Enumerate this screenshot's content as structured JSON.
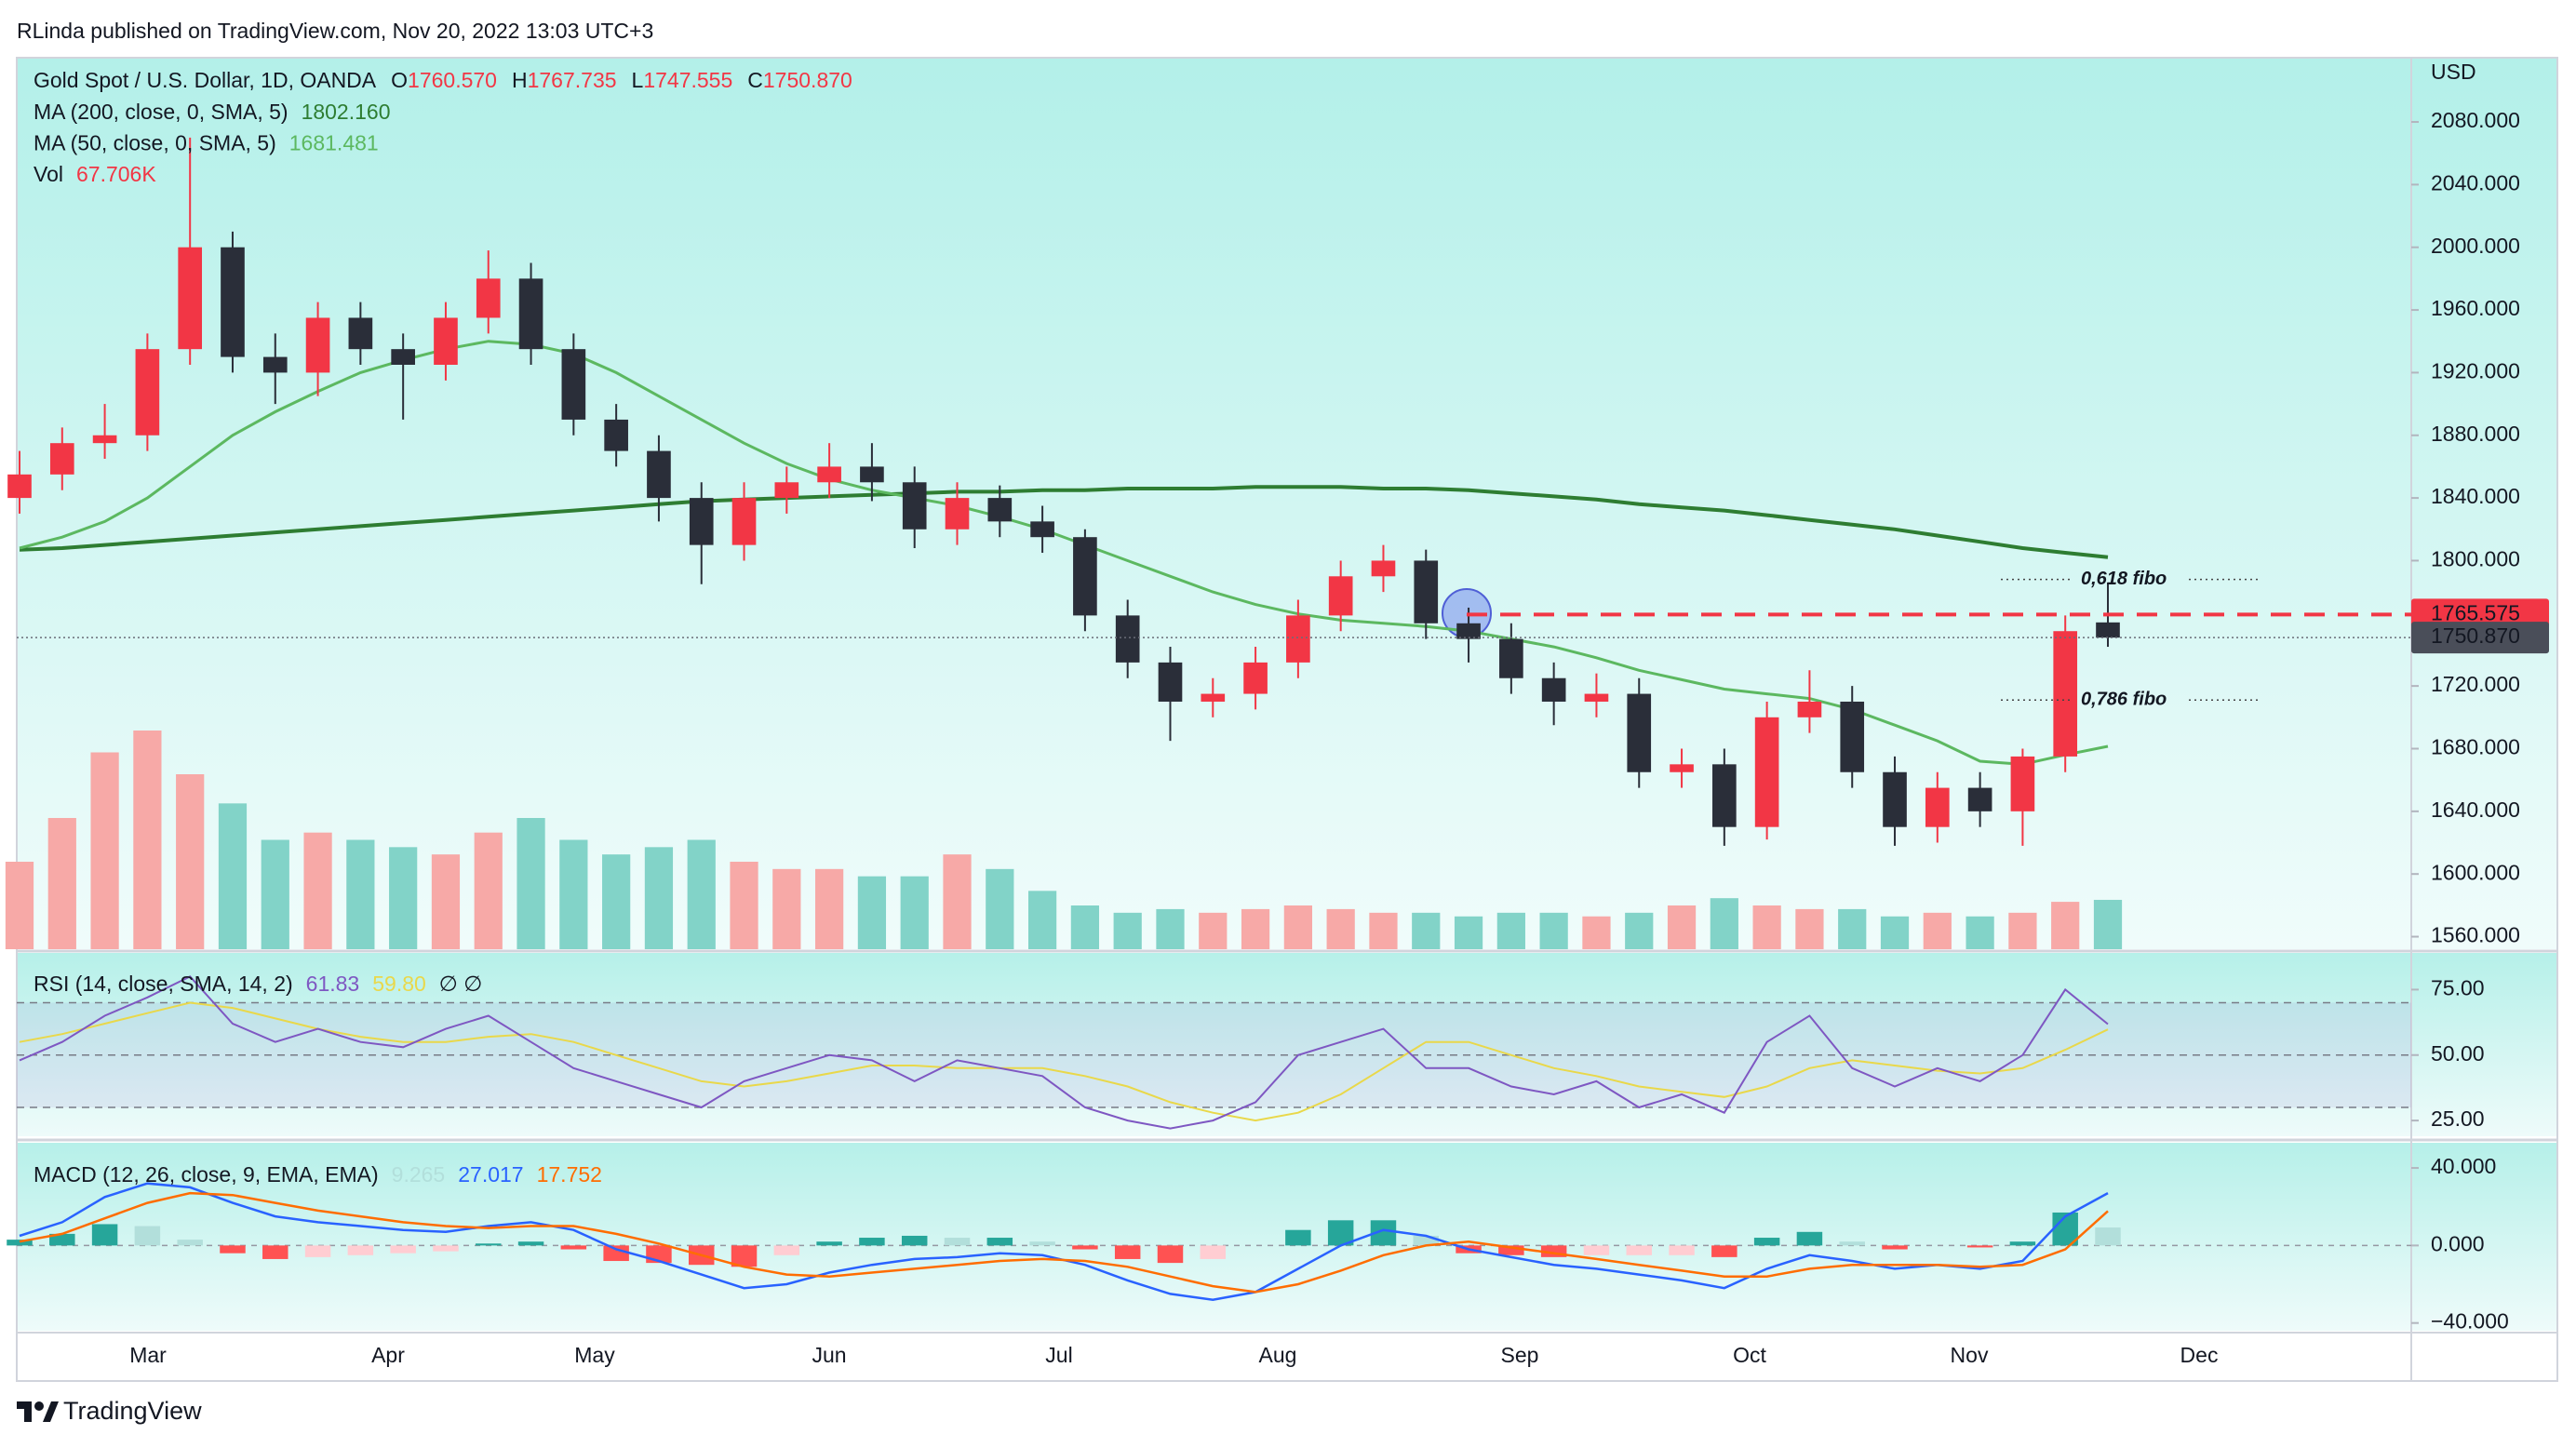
{
  "header": {
    "published": "RLinda published on TradingView.com, Nov 20, 2022 13:03 UTC+3"
  },
  "footer": {
    "brand": "TradingView"
  },
  "chart_data": [
    {
      "type": "candlestick",
      "symbol": "Gold Spot / U.S. Dollar, 1D, OANDA",
      "ohlc": [
        {
          "label": "O",
          "value": "1760.570"
        },
        {
          "label": "H",
          "value": "1767.735"
        },
        {
          "label": "L",
          "value": "1747.555"
        },
        {
          "label": "C",
          "value": "1750.870"
        }
      ],
      "currency": "USD",
      "open": [
        1840,
        1855,
        1875,
        1880,
        1935,
        2000,
        1930,
        1920,
        1955,
        1935,
        1925,
        1955,
        1980,
        1935,
        1890,
        1870,
        1840,
        1810,
        1840,
        1850,
        1860,
        1850,
        1820,
        1840,
        1825,
        1815,
        1765,
        1735,
        1710,
        1715,
        1735,
        1765,
        1790,
        1800,
        1760,
        1750,
        1725,
        1710,
        1715,
        1665,
        1670,
        1630,
        1700,
        1710,
        1665,
        1630,
        1655,
        1640,
        1675,
        1760.57
      ],
      "high": [
        1870,
        1885,
        1900,
        1945,
        2070,
        2010,
        1945,
        1965,
        1965,
        1945,
        1965,
        1998,
        1990,
        1945,
        1900,
        1880,
        1850,
        1850,
        1860,
        1875,
        1875,
        1860,
        1850,
        1848,
        1835,
        1820,
        1775,
        1745,
        1725,
        1745,
        1775,
        1800,
        1810,
        1807,
        1770,
        1760,
        1735,
        1728,
        1725,
        1680,
        1680,
        1710,
        1730,
        1720,
        1675,
        1665,
        1665,
        1680,
        1765,
        1786
      ],
      "low": [
        1830,
        1845,
        1865,
        1870,
        1925,
        1920,
        1900,
        1905,
        1925,
        1890,
        1915,
        1945,
        1925,
        1880,
        1860,
        1825,
        1785,
        1800,
        1830,
        1840,
        1838,
        1808,
        1810,
        1815,
        1805,
        1755,
        1725,
        1685,
        1700,
        1705,
        1725,
        1755,
        1780,
        1750,
        1735,
        1715,
        1695,
        1700,
        1655,
        1655,
        1618,
        1622,
        1690,
        1655,
        1618,
        1620,
        1630,
        1618,
        1665,
        1745
      ],
      "close": [
        1855,
        1875,
        1880,
        1935,
        2000,
        1930,
        1920,
        1955,
        1935,
        1925,
        1955,
        1980,
        1935,
        1890,
        1870,
        1840,
        1810,
        1840,
        1850,
        1860,
        1850,
        1820,
        1840,
        1825,
        1815,
        1765,
        1735,
        1710,
        1715,
        1735,
        1765,
        1790,
        1800,
        1760,
        1750,
        1725,
        1710,
        1715,
        1665,
        1670,
        1630,
        1700,
        1710,
        1665,
        1630,
        1655,
        1640,
        1675,
        1755,
        1750.87
      ],
      "up_color": "#f23645",
      "down_color": "#2a2e39",
      "volume": [
        120,
        180,
        270,
        300,
        240,
        200,
        150,
        160,
        150,
        140,
        130,
        160,
        180,
        150,
        130,
        140,
        150,
        120,
        110,
        110,
        100,
        100,
        130,
        110,
        80,
        60,
        50,
        55,
        50,
        55,
        60,
        55,
        50,
        50,
        45,
        50,
        50,
        45,
        50,
        60,
        70,
        60,
        55,
        55,
        45,
        50,
        45,
        50,
        65,
        67.706
      ],
      "volume_up_color": "#f7a9a7",
      "volume_down_color": "#82d3c8",
      "volume_legend": {
        "name": "Vol",
        "label": "67.706K"
      },
      "overlays": [
        {
          "name": "MA (200, close, 0, SMA, 5)",
          "last_label": "1802.160",
          "color": "#2e7d32",
          "values": [
            1807,
            1808,
            1810,
            1812,
            1814,
            1816,
            1818,
            1820,
            1822,
            1824,
            1826,
            1828,
            1830,
            1832,
            1834,
            1836,
            1838,
            1839,
            1840,
            1841,
            1842,
            1843,
            1844,
            1844,
            1845,
            1845,
            1846,
            1846,
            1846,
            1847,
            1847,
            1847,
            1846,
            1846,
            1845,
            1843,
            1841,
            1839,
            1836,
            1834,
            1832,
            1829,
            1826,
            1823,
            1820,
            1816,
            1812,
            1808,
            1805,
            1802.16
          ]
        },
        {
          "name": "MA (50, close, 0, SMA, 5)",
          "last_label": "1681.481",
          "color": "#5cb860",
          "values": [
            1808,
            1815,
            1825,
            1840,
            1860,
            1880,
            1895,
            1908,
            1920,
            1928,
            1935,
            1940,
            1938,
            1932,
            1920,
            1905,
            1890,
            1875,
            1862,
            1852,
            1845,
            1840,
            1835,
            1828,
            1820,
            1810,
            1800,
            1790,
            1780,
            1772,
            1766,
            1762,
            1760,
            1758,
            1755,
            1750,
            1745,
            1738,
            1730,
            1724,
            1718,
            1715,
            1712,
            1705,
            1695,
            1685,
            1672,
            1670,
            1676,
            1681.481
          ]
        }
      ],
      "hline": {
        "value": 1765.575,
        "color": "#f23645"
      },
      "last_price": {
        "value": 1750.87,
        "label": "1750.870",
        "color": "#4a4e59"
      },
      "fibo": [
        {
          "value": 1788,
          "label": "0,618 fibo"
        },
        {
          "value": 1711,
          "label": "0,786 fibo"
        }
      ],
      "fibo_color": "#2962ff",
      "time_labels": [
        "Mar",
        "Apr",
        "May",
        "Jun",
        "Jul",
        "Aug",
        "Sep",
        "Oct",
        "Nov",
        "Dec"
      ],
      "ylim": [
        1552,
        2121
      ],
      "yticks": [
        {
          "value": 1560,
          "label": "1560.000"
        },
        {
          "value": 1600,
          "label": "1600.000"
        },
        {
          "value": 1640,
          "label": "1640.000"
        },
        {
          "value": 1680,
          "label": "1680.000"
        },
        {
          "value": 1720,
          "label": "1720.000"
        },
        {
          "value": 1760,
          "label": "1760.000"
        },
        {
          "value": 1800,
          "label": "1800.000"
        },
        {
          "value": 1840,
          "label": "1840.000"
        },
        {
          "value": 1880,
          "label": "1880.000"
        },
        {
          "value": 1920,
          "label": "1920.000"
        },
        {
          "value": 1960,
          "label": "1960.000"
        },
        {
          "value": 2000,
          "label": "2000.000"
        },
        {
          "value": 2040,
          "label": "2040.000"
        },
        {
          "value": 2080,
          "label": "2080.000"
        }
      ]
    },
    {
      "type": "line",
      "title": "RSI (14, close, SMA, 14, 2)",
      "title_suffix": "∅ ∅",
      "series": [
        {
          "color": "#7e57c2",
          "last_label": "61.83",
          "values": [
            48,
            55,
            65,
            72,
            80,
            62,
            55,
            60,
            55,
            53,
            60,
            65,
            55,
            45,
            40,
            35,
            30,
            40,
            45,
            50,
            48,
            40,
            48,
            45,
            42,
            30,
            25,
            22,
            25,
            32,
            50,
            55,
            60,
            45,
            45,
            38,
            35,
            40,
            30,
            35,
            28,
            55,
            65,
            45,
            38,
            45,
            40,
            50,
            75,
            61.83
          ]
        },
        {
          "color": "#e9d84a",
          "last_label": "59.80",
          "values": [
            55,
            58,
            62,
            66,
            70,
            68,
            64,
            60,
            57,
            55,
            55,
            57,
            58,
            55,
            50,
            45,
            40,
            38,
            40,
            43,
            46,
            46,
            45,
            45,
            45,
            42,
            38,
            32,
            28,
            25,
            28,
            35,
            45,
            55,
            55,
            50,
            45,
            42,
            38,
            36,
            34,
            38,
            45,
            48,
            46,
            44,
            43,
            45,
            52,
            59.8
          ]
        }
      ],
      "levels": [
        30,
        50,
        70
      ],
      "band_color": "#7e57c2",
      "ylim": [
        19,
        89
      ],
      "yticks": [
        {
          "value": 25,
          "label": "25.00"
        },
        {
          "value": 50,
          "label": "50.00"
        },
        {
          "value": 75,
          "label": "75.00"
        }
      ]
    },
    {
      "type": "macd",
      "title": "MACD (12, 26, close, 9, EMA, EMA)",
      "histogram": {
        "last_label": "9.265",
        "colors": [
          "#26a69a",
          "#b2dfdb",
          "#ffcdd2",
          "#ff5252"
        ],
        "values": [
          3,
          6,
          11,
          10,
          3,
          -4,
          -7,
          -6,
          -5,
          -4,
          -3,
          1,
          2,
          -2,
          -8,
          -9,
          -10,
          -11,
          -5,
          2,
          4,
          5,
          4,
          4,
          2,
          -2,
          -7,
          -9,
          -7,
          0,
          8,
          13,
          13,
          5,
          -4,
          -5,
          -6,
          -5,
          -5,
          -5,
          -6,
          4,
          7,
          2,
          -2,
          0,
          -1,
          2,
          17,
          9.265
        ]
      },
      "series": [
        {
          "color": "#2962ff",
          "last_label": "27.017",
          "values": [
            5,
            12,
            25,
            32,
            30,
            22,
            15,
            12,
            10,
            8,
            7,
            10,
            12,
            8,
            -2,
            -8,
            -15,
            -22,
            -20,
            -14,
            -10,
            -7,
            -6,
            -4,
            -5,
            -10,
            -18,
            -25,
            -28,
            -24,
            -12,
            0,
            8,
            5,
            -2,
            -6,
            -10,
            -12,
            -15,
            -18,
            -22,
            -12,
            -5,
            -8,
            -12,
            -10,
            -12,
            -8,
            15,
            27.017
          ]
        },
        {
          "color": "#ff6d00",
          "last_label": "17.752",
          "values": [
            2,
            6,
            14,
            22,
            27,
            26,
            22,
            18,
            15,
            12,
            10,
            9,
            10,
            10,
            6,
            1,
            -5,
            -11,
            -15,
            -16,
            -14,
            -12,
            -10,
            -8,
            -7,
            -8,
            -11,
            -16,
            -21,
            -24,
            -20,
            -13,
            -5,
            0,
            2,
            -1,
            -4,
            -7,
            -10,
            -13,
            -16,
            -16,
            -12,
            -10,
            -10,
            -10,
            -11,
            -10,
            -2,
            17.752
          ]
        }
      ],
      "ylim": [
        -44,
        53
      ],
      "yticks": [
        {
          "value": -40,
          "label": "−40.000"
        },
        {
          "value": 0,
          "label": "0.000"
        },
        {
          "value": 40,
          "label": "40.000"
        }
      ]
    }
  ]
}
